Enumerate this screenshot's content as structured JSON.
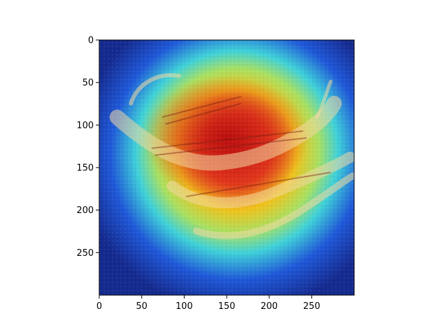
{
  "chart_data": {
    "type": "heatmap",
    "title": "",
    "xlabel": "",
    "ylabel": "",
    "xlim": [
      0,
      300
    ],
    "ylim": [
      300,
      0
    ],
    "xticks": [
      0,
      50,
      100,
      150,
      200,
      250
    ],
    "yticks": [
      0,
      50,
      100,
      150,
      200,
      250
    ],
    "colormap": "jet",
    "grid": false,
    "legend": "none",
    "hotspot_center": [
      160,
      150
    ],
    "description_of_content": "Grad-CAM style heatmap overlay on a photo of a lizard"
  }
}
